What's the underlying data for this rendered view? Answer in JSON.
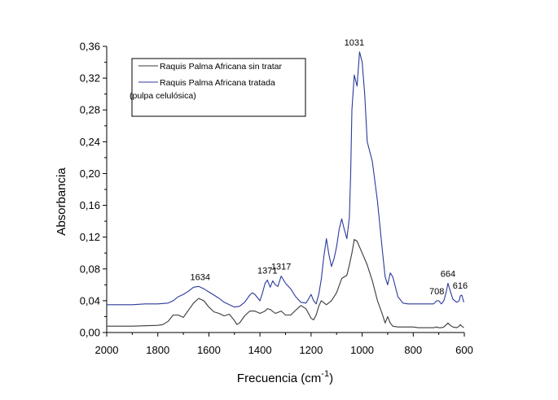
{
  "chart_data": {
    "type": "line",
    "title": "",
    "xlabel": "Frecuencia (cm",
    "xlabel_sup": "-1",
    "xlabel_close": ")",
    "ylabel": "Absorbancia",
    "xlim": [
      2000,
      600
    ],
    "ylim": [
      0,
      0.36
    ],
    "x_reversed": true,
    "grid": false,
    "legend_position": "top-left",
    "x_ticks": [
      2000,
      1800,
      1600,
      1400,
      1200,
      1000,
      800,
      600
    ],
    "x_tick_labels": [
      "2000",
      "1800",
      "1600",
      "1400",
      "1200",
      "1000",
      "800",
      "600"
    ],
    "y_ticks": [
      0,
      0.04,
      0.08,
      0.12,
      0.16,
      0.2,
      0.24,
      0.28,
      0.32,
      0.36
    ],
    "y_tick_labels": [
      "0,00",
      "0,04",
      "0,08",
      "0,12",
      "0,16",
      "0,20",
      "0,24",
      "0,28",
      "0,32",
      "0,36"
    ],
    "legend_note": "(pulpa celulósica)",
    "series": [
      {
        "name": "Raquis Palma Africana sin tratar",
        "color": "#3a3a3a",
        "x": [
          2000,
          1900,
          1800,
          1780,
          1760,
          1740,
          1720,
          1700,
          1680,
          1660,
          1640,
          1620,
          1600,
          1580,
          1560,
          1540,
          1520,
          1500,
          1490,
          1480,
          1460,
          1440,
          1420,
          1400,
          1380,
          1371,
          1360,
          1340,
          1317,
          1300,
          1280,
          1260,
          1240,
          1220,
          1210,
          1200,
          1190,
          1180,
          1170,
          1160,
          1140,
          1120,
          1100,
          1080,
          1060,
          1050,
          1040,
          1031,
          1020,
          1000,
          980,
          960,
          940,
          920,
          910,
          900,
          890,
          880,
          860,
          840,
          820,
          800,
          780,
          760,
          740,
          720,
          708,
          700,
          690,
          680,
          670,
          664,
          655,
          645,
          630,
          620,
          616,
          610,
          602
        ],
        "y": [
          0.008,
          0.008,
          0.009,
          0.01,
          0.014,
          0.022,
          0.022,
          0.019,
          0.028,
          0.037,
          0.043,
          0.04,
          0.032,
          0.026,
          0.024,
          0.021,
          0.023,
          0.015,
          0.01,
          0.012,
          0.021,
          0.027,
          0.027,
          0.024,
          0.027,
          0.03,
          0.029,
          0.024,
          0.027,
          0.022,
          0.022,
          0.028,
          0.034,
          0.03,
          0.024,
          0.018,
          0.016,
          0.022,
          0.033,
          0.04,
          0.035,
          0.04,
          0.05,
          0.068,
          0.072,
          0.085,
          0.1,
          0.117,
          0.115,
          0.1,
          0.085,
          0.065,
          0.04,
          0.022,
          0.012,
          0.02,
          0.012,
          0.008,
          0.007,
          0.007,
          0.007,
          0.007,
          0.006,
          0.006,
          0.006,
          0.006,
          0.007,
          0.006,
          0.006,
          0.007,
          0.01,
          0.012,
          0.009,
          0.007,
          0.006,
          0.008,
          0.01,
          0.008,
          0.006
        ]
      },
      {
        "name": "Raquis Palma Africana tratada",
        "color": "#2b3a9c",
        "x": [
          2000,
          1950,
          1900,
          1850,
          1800,
          1760,
          1740,
          1720,
          1700,
          1680,
          1660,
          1640,
          1620,
          1600,
          1580,
          1560,
          1540,
          1520,
          1500,
          1480,
          1460,
          1440,
          1430,
          1420,
          1400,
          1390,
          1380,
          1371,
          1360,
          1350,
          1340,
          1330,
          1317,
          1300,
          1280,
          1260,
          1240,
          1220,
          1210,
          1200,
          1190,
          1180,
          1170,
          1160,
          1150,
          1140,
          1130,
          1120,
          1110,
          1100,
          1090,
          1080,
          1070,
          1060,
          1050,
          1045,
          1040,
          1031,
          1020,
          1010,
          1000,
          990,
          980,
          960,
          940,
          920,
          910,
          900,
          890,
          880,
          860,
          840,
          820,
          800,
          780,
          760,
          740,
          720,
          708,
          700,
          690,
          680,
          670,
          664,
          655,
          645,
          630,
          620,
          616,
          610,
          602
        ],
        "y": [
          0.035,
          0.035,
          0.035,
          0.036,
          0.036,
          0.037,
          0.04,
          0.045,
          0.048,
          0.052,
          0.057,
          0.058,
          0.055,
          0.051,
          0.047,
          0.043,
          0.038,
          0.035,
          0.032,
          0.033,
          0.038,
          0.047,
          0.05,
          0.048,
          0.04,
          0.05,
          0.062,
          0.066,
          0.057,
          0.065,
          0.06,
          0.058,
          0.071,
          0.062,
          0.055,
          0.045,
          0.038,
          0.037,
          0.042,
          0.048,
          0.04,
          0.036,
          0.048,
          0.067,
          0.095,
          0.118,
          0.098,
          0.083,
          0.093,
          0.108,
          0.13,
          0.143,
          0.13,
          0.118,
          0.145,
          0.2,
          0.28,
          0.324,
          0.31,
          0.353,
          0.34,
          0.3,
          0.24,
          0.215,
          0.165,
          0.1,
          0.07,
          0.06,
          0.075,
          0.07,
          0.045,
          0.037,
          0.036,
          0.036,
          0.036,
          0.036,
          0.036,
          0.036,
          0.04,
          0.04,
          0.036,
          0.04,
          0.052,
          0.062,
          0.052,
          0.042,
          0.038,
          0.04,
          0.046,
          0.047,
          0.038
        ]
      }
    ],
    "annotations": [
      {
        "text": "1634",
        "x": 1634,
        "y": 0.058
      },
      {
        "text": "1371",
        "x": 1371,
        "y": 0.066
      },
      {
        "text": "1317",
        "x": 1317,
        "y": 0.071
      },
      {
        "text": "1031",
        "x": 1031,
        "y": 0.353
      },
      {
        "text": "708",
        "x": 708,
        "y": 0.04
      },
      {
        "text": "664",
        "x": 664,
        "y": 0.062
      },
      {
        "text": "616",
        "x": 616,
        "y": 0.047
      }
    ]
  }
}
